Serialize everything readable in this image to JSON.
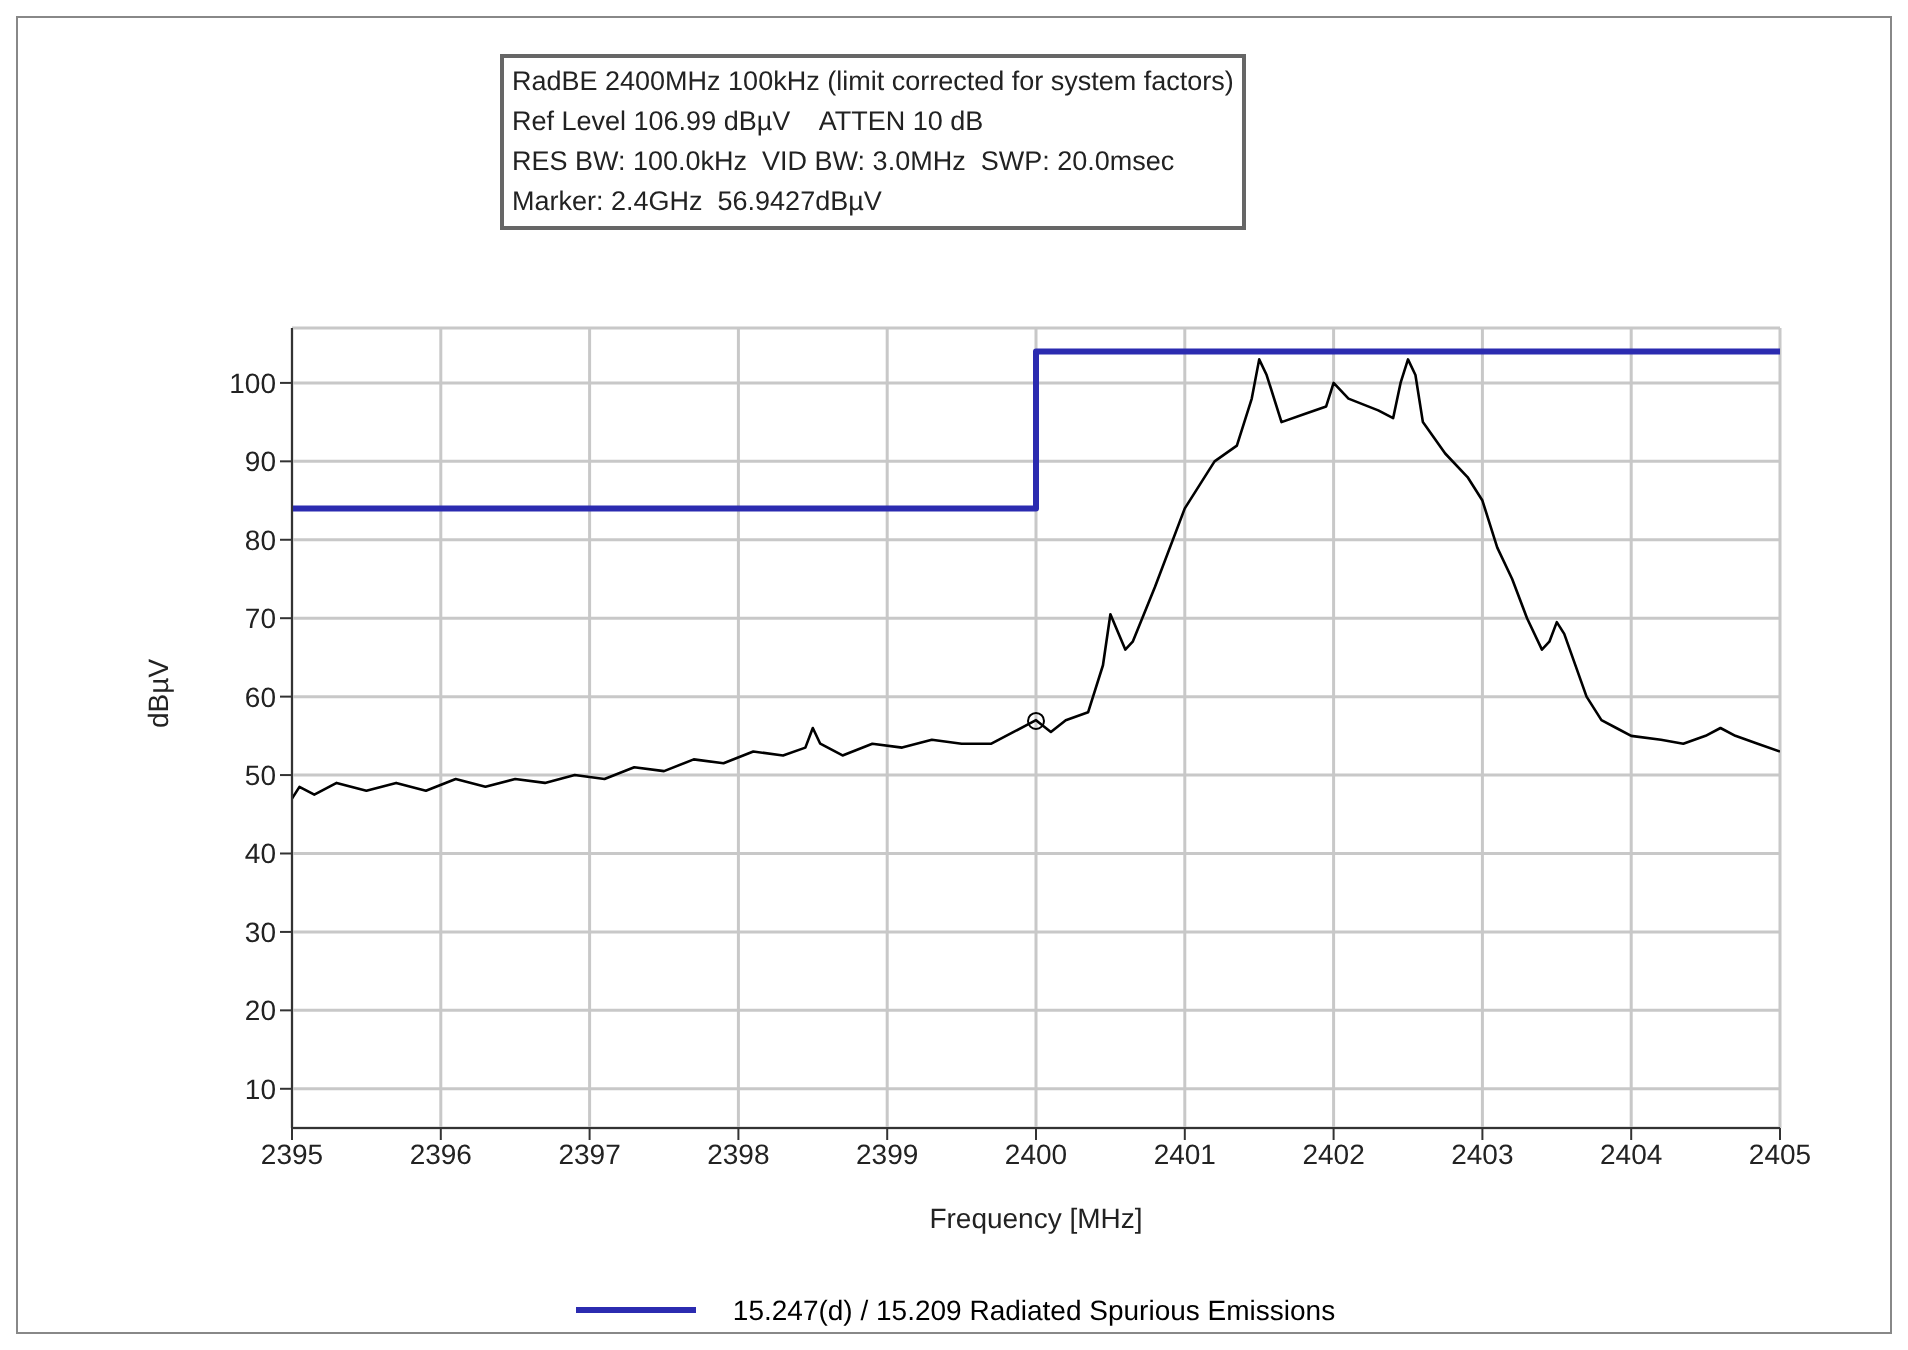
{
  "chart_data": {
    "type": "line",
    "annotations": [
      "RadBE 2400MHz 100kHz (limit corrected for system factors)",
      "Ref Level 106.99 dBµV    ATTEN 10 dB",
      "RES BW: 100.0kHz  VID BW: 3.0MHz  SWP: 20.0msec",
      "Marker: 2.4GHz  56.9427dBµV"
    ],
    "xlabel": "Frequency [MHz]",
    "ylabel": "dBµV",
    "xlim": [
      2395,
      2405
    ],
    "xticks": [
      2395,
      2396,
      2397,
      2398,
      2399,
      2400,
      2401,
      2402,
      2403,
      2404,
      2405
    ],
    "ylim": [
      5,
      107
    ],
    "yticks": [
      10,
      20,
      30,
      40,
      50,
      60,
      70,
      80,
      90,
      100
    ],
    "grid": true,
    "legend": "bottom",
    "marker": "none",
    "series": [
      {
        "name": "15.247(d) / 15.209 Radiated Spurious Emissions",
        "type": "step",
        "color": "#2b2bb0",
        "x": [
          2395,
          2400,
          2405
        ],
        "values": [
          84,
          104,
          104
        ]
      },
      {
        "color": "#000000",
        "x": [
          2395.0,
          2395.05,
          2395.15,
          2395.3,
          2395.5,
          2395.7,
          2395.9,
          2396.1,
          2396.3,
          2396.5,
          2396.7,
          2396.9,
          2397.1,
          2397.3,
          2397.5,
          2397.7,
          2397.9,
          2398.1,
          2398.3,
          2398.45,
          2398.5,
          2398.55,
          2398.7,
          2398.9,
          2399.1,
          2399.3,
          2399.5,
          2399.7,
          2399.85,
          2400.0,
          2400.1,
          2400.2,
          2400.35,
          2400.45,
          2400.5,
          2400.6,
          2400.65,
          2400.8,
          2401.0,
          2401.1,
          2401.2,
          2401.35,
          2401.45,
          2401.5,
          2401.55,
          2401.65,
          2401.8,
          2401.95,
          2402.0,
          2402.1,
          2402.3,
          2402.4,
          2402.45,
          2402.5,
          2402.55,
          2402.6,
          2402.75,
          2402.9,
          2403.0,
          2403.1,
          2403.2,
          2403.3,
          2403.4,
          2403.45,
          2403.5,
          2403.55,
          2403.7,
          2403.8,
          2403.9,
          2404.0,
          2404.2,
          2404.35,
          2404.5,
          2404.6,
          2404.7,
          2404.85,
          2405.0
        ],
        "values": [
          47,
          48.5,
          47.5,
          49,
          48,
          49,
          48,
          49.5,
          48.5,
          49.5,
          49,
          50,
          49.5,
          51,
          50.5,
          52,
          51.5,
          53,
          52.5,
          53.5,
          56,
          54,
          52.5,
          54,
          53.5,
          54.5,
          54,
          54,
          55.5,
          57,
          55.5,
          57,
          58,
          64,
          70.5,
          66,
          67,
          74,
          84,
          87,
          90,
          92,
          98,
          103,
          101,
          95,
          96,
          97,
          100,
          98,
          96.5,
          95.5,
          100,
          103,
          101,
          95,
          91,
          88,
          85,
          79,
          75,
          70,
          66,
          67,
          69.5,
          68,
          60,
          57,
          56,
          55,
          54.5,
          54,
          55,
          56,
          55,
          54,
          53
        ]
      },
      {
        "type": "scatter",
        "marker": "circle",
        "color": "#000000",
        "x": [
          2400
        ],
        "values": [
          56.9
        ]
      }
    ]
  }
}
